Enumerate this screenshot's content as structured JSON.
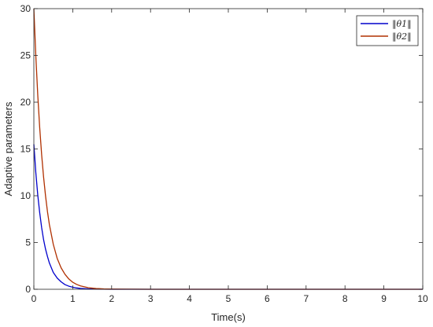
{
  "chart_data": {
    "type": "line",
    "title": "",
    "xlabel": "Time(s)",
    "ylabel": "Adaptive parameters",
    "xlim": [
      0,
      10
    ],
    "ylim": [
      0,
      30
    ],
    "xticks": [
      0,
      1,
      2,
      3,
      4,
      5,
      6,
      7,
      8,
      9,
      10
    ],
    "yticks": [
      0,
      5,
      10,
      15,
      20,
      25,
      30
    ],
    "grid": false,
    "legend_position": "top-right",
    "series": [
      {
        "name": "‖θ1‖",
        "color": "#0000cc",
        "x": [
          0,
          0.05,
          0.1,
          0.15,
          0.2,
          0.25,
          0.3,
          0.35,
          0.4,
          0.5,
          0.6,
          0.7,
          0.8,
          0.9,
          1.0,
          1.1,
          1.2,
          1.4,
          1.6,
          1.8,
          2.0,
          3,
          4,
          5,
          6,
          7,
          8,
          9,
          10
        ],
        "values": [
          15.5,
          12.5,
          10.1,
          8.2,
          6.6,
          5.3,
          4.3,
          3.5,
          2.8,
          1.8,
          1.2,
          0.8,
          0.5,
          0.33,
          0.22,
          0.14,
          0.09,
          0.04,
          0.02,
          0.01,
          0.005,
          0,
          0,
          0,
          0,
          0,
          0,
          0,
          0
        ]
      },
      {
        "name": "‖θ2‖",
        "color": "#b03000",
        "x": [
          0,
          0.05,
          0.1,
          0.15,
          0.2,
          0.25,
          0.3,
          0.35,
          0.4,
          0.5,
          0.6,
          0.7,
          0.8,
          0.9,
          1.0,
          1.1,
          1.2,
          1.4,
          1.6,
          1.8,
          2.0,
          3,
          4,
          5,
          6,
          7,
          8,
          9,
          10
        ],
        "values": [
          30,
          25.0,
          20.8,
          17.3,
          14.4,
          12.0,
          10.0,
          8.3,
          6.9,
          4.8,
          3.3,
          2.3,
          1.6,
          1.1,
          0.75,
          0.52,
          0.36,
          0.17,
          0.08,
          0.04,
          0.02,
          0,
          0,
          0,
          0,
          0,
          0,
          0,
          0
        ]
      }
    ]
  }
}
